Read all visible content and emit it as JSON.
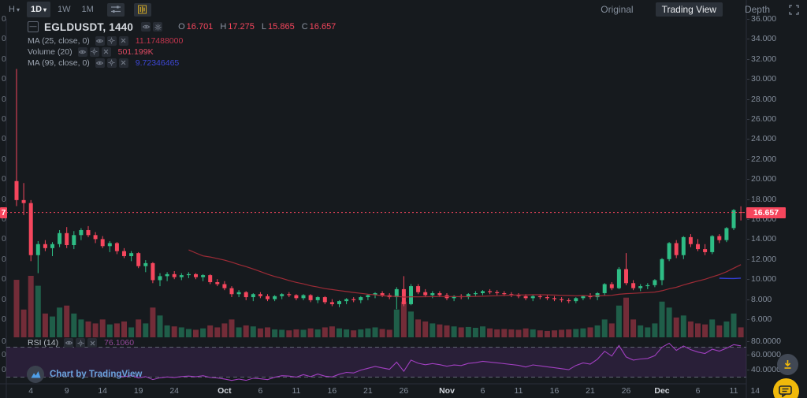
{
  "header": {
    "intervals": [
      {
        "label": "H",
        "caret": "▾",
        "active": false
      },
      {
        "label": "1D",
        "caret": "▾",
        "active": true
      },
      {
        "label": "1W",
        "caret": "",
        "active": false
      },
      {
        "label": "1M",
        "caret": "",
        "active": false
      }
    ],
    "view_tabs": [
      {
        "label": "Original",
        "active": false
      },
      {
        "label": "Trading View",
        "active": true
      },
      {
        "label": "Depth",
        "active": false
      }
    ]
  },
  "legend": {
    "collapse_glyph": "—",
    "symbol": "EGLDUSDT, 1440",
    "ohlc": [
      {
        "k": "O",
        "v": "16.701"
      },
      {
        "k": "H",
        "v": "17.275"
      },
      {
        "k": "L",
        "v": "15.865"
      },
      {
        "k": "C",
        "v": "16.657"
      }
    ],
    "indicators": [
      {
        "label": "MA (25, close, 0)",
        "value": "11.17488000",
        "color": "#c2354d"
      },
      {
        "label": "Volume (20)",
        "value": "501.199K",
        "color": "#e04a62"
      },
      {
        "label": "MA (99, close, 0)",
        "value": "9.72346465",
        "color": "#3d47d6"
      }
    ],
    "rsi": {
      "label": "RSI (14)",
      "value": "76.1060",
      "color": "#94489a"
    }
  },
  "attribution": {
    "text": "Chart by TradingView"
  },
  "axes": {
    "price_ticks": [
      {
        "value": 36,
        "label": "36.000"
      },
      {
        "value": 34,
        "label": "34.000"
      },
      {
        "value": 32,
        "label": "32.000"
      },
      {
        "value": 30,
        "label": "30.000"
      },
      {
        "value": 28,
        "label": "28.000"
      },
      {
        "value": 26,
        "label": "26.000"
      },
      {
        "value": 24,
        "label": "24.000"
      },
      {
        "value": 22,
        "label": "22.000"
      },
      {
        "value": 20,
        "label": "20.000"
      },
      {
        "value": 18,
        "label": "18.000"
      },
      {
        "value": 16,
        "label": "16.000"
      },
      {
        "value": 14,
        "label": "14.000"
      },
      {
        "value": 12,
        "label": "12.000"
      },
      {
        "value": 10,
        "label": "10.000"
      },
      {
        "value": 8,
        "label": "8.000"
      },
      {
        "value": 6,
        "label": "6.000"
      }
    ],
    "last_price_label": "16.657",
    "left_truncated_price": "7",
    "left_truncated_tick": "0",
    "rsi_ticks": [
      {
        "value": 80,
        "label": "80.0000"
      },
      {
        "value": 60,
        "label": "60.0000"
      },
      {
        "value": 40,
        "label": "40.0000"
      }
    ],
    "time_ticks": [
      {
        "i": 2,
        "label": "4",
        "month": false
      },
      {
        "i": 7,
        "label": "9",
        "month": false
      },
      {
        "i": 12,
        "label": "14",
        "month": false
      },
      {
        "i": 17,
        "label": "19",
        "month": false
      },
      {
        "i": 22,
        "label": "24",
        "month": false
      },
      {
        "i": 29,
        "label": "Oct",
        "month": true
      },
      {
        "i": 34,
        "label": "6",
        "month": false
      },
      {
        "i": 39,
        "label": "11",
        "month": false
      },
      {
        "i": 44,
        "label": "16",
        "month": false
      },
      {
        "i": 49,
        "label": "21",
        "month": false
      },
      {
        "i": 54,
        "label": "26",
        "month": false
      },
      {
        "i": 60,
        "label": "Nov",
        "month": true
      },
      {
        "i": 65,
        "label": "6",
        "month": false
      },
      {
        "i": 70,
        "label": "11",
        "month": false
      },
      {
        "i": 75,
        "label": "16",
        "month": false
      },
      {
        "i": 80,
        "label": "21",
        "month": false
      },
      {
        "i": 85,
        "label": "26",
        "month": false
      },
      {
        "i": 90,
        "label": "Dec",
        "month": true
      },
      {
        "i": 95,
        "label": "6",
        "month": false
      },
      {
        "i": 100,
        "label": "11",
        "month": false
      },
      {
        "i": 103,
        "label": "14",
        "month": false
      }
    ]
  },
  "colors": {
    "bg": "#161a1e",
    "up": "#2ebd85",
    "down": "#f6465d",
    "ma25_line": "#9e2b36",
    "ma99_line": "#343ed6",
    "rsi_line": "#a13fc0",
    "rsi_band_fill": "rgba(140,62,190,0.16)",
    "dashed_level": "#5f6472",
    "panel_line": "#2a2e39",
    "axis_text": "#848e9c",
    "accent": "#f0b90b",
    "price_label_bg": "#f6465d"
  },
  "chart_data": {
    "type": "candlestick",
    "symbol": "EGLDUSDT",
    "interval_minutes": 1440,
    "title": "EGLDUSDT, 1440",
    "legend_position": "top-left",
    "grid": false,
    "price_axis": {
      "min": 4.2,
      "max": 36,
      "tick_step": 2,
      "side": "right"
    },
    "rsi_axis": {
      "overbought": 70,
      "oversold": 30,
      "period": 14
    },
    "indicator_periods": {
      "ma_fast": 25,
      "ma_slow": 99,
      "volume_ma": 20,
      "rsi": 14
    },
    "last_price": 16.657,
    "ohlc_fields": [
      "open",
      "high",
      "low",
      "close",
      "volume_k"
    ],
    "candles": [
      [
        19.8,
        31.0,
        17.3,
        17.9,
        2900
      ],
      [
        17.9,
        19.6,
        16.4,
        17.6,
        1400
      ],
      [
        17.6,
        17.9,
        11.8,
        12.4,
        3100
      ],
      [
        12.4,
        13.8,
        10.6,
        13.5,
        2600
      ],
      [
        13.5,
        13.9,
        12.8,
        13.1,
        1200
      ],
      [
        13.1,
        13.7,
        12.3,
        13.5,
        1050
      ],
      [
        13.5,
        14.9,
        13.2,
        14.6,
        1500
      ],
      [
        14.6,
        15.2,
        13.1,
        13.4,
        1600
      ],
      [
        13.4,
        14.8,
        13.0,
        14.4,
        1200
      ],
      [
        14.4,
        15.1,
        13.9,
        14.9,
        900
      ],
      [
        14.9,
        15.3,
        14.2,
        14.4,
        800
      ],
      [
        14.4,
        14.7,
        13.6,
        14.0,
        700
      ],
      [
        14.0,
        14.3,
        13.1,
        13.3,
        900
      ],
      [
        13.3,
        13.8,
        12.7,
        13.6,
        650
      ],
      [
        13.6,
        13.7,
        12.5,
        12.8,
        700
      ],
      [
        12.8,
        13.1,
        12.1,
        12.3,
        800
      ],
      [
        12.3,
        12.8,
        11.8,
        12.6,
        500
      ],
      [
        12.6,
        12.7,
        11.1,
        11.3,
        900
      ],
      [
        11.3,
        11.9,
        10.7,
        11.6,
        700
      ],
      [
        11.6,
        11.7,
        9.6,
        9.9,
        1500
      ],
      [
        9.9,
        10.6,
        9.3,
        10.3,
        1100
      ],
      [
        10.3,
        10.7,
        9.8,
        10.5,
        600
      ],
      [
        10.5,
        10.8,
        10.0,
        10.2,
        550
      ],
      [
        10.2,
        10.6,
        9.9,
        10.4,
        500
      ],
      [
        10.4,
        10.7,
        10.1,
        10.5,
        420
      ],
      [
        10.5,
        10.6,
        10.0,
        10.2,
        380
      ],
      [
        10.2,
        10.5,
        9.8,
        10.4,
        450
      ],
      [
        10.4,
        10.5,
        9.5,
        9.7,
        600
      ],
      [
        9.7,
        10.0,
        9.3,
        9.5,
        500
      ],
      [
        9.5,
        9.8,
        8.9,
        9.1,
        700
      ],
      [
        9.1,
        9.3,
        8.2,
        8.5,
        900
      ],
      [
        8.5,
        8.9,
        8.2,
        8.7,
        500
      ],
      [
        8.7,
        8.8,
        7.9,
        8.2,
        600
      ],
      [
        8.2,
        8.6,
        7.8,
        8.5,
        550
      ],
      [
        8.5,
        8.7,
        8.1,
        8.3,
        450
      ],
      [
        8.3,
        8.5,
        7.8,
        8.0,
        500
      ],
      [
        8.0,
        8.4,
        7.8,
        8.3,
        400
      ],
      [
        8.3,
        8.6,
        8.0,
        8.5,
        380
      ],
      [
        8.5,
        8.7,
        8.2,
        8.4,
        350
      ],
      [
        8.4,
        8.5,
        7.9,
        8.1,
        400
      ],
      [
        8.1,
        8.5,
        7.9,
        8.4,
        380
      ],
      [
        8.4,
        8.5,
        7.7,
        7.9,
        450
      ],
      [
        7.9,
        8.3,
        7.6,
        8.2,
        400
      ],
      [
        8.2,
        8.3,
        7.5,
        7.7,
        500
      ],
      [
        7.7,
        8.0,
        7.3,
        7.5,
        550
      ],
      [
        7.5,
        7.9,
        7.2,
        7.8,
        450
      ],
      [
        7.8,
        8.1,
        7.5,
        8.0,
        400
      ],
      [
        8.0,
        8.2,
        7.7,
        7.9,
        350
      ],
      [
        7.9,
        8.3,
        7.6,
        8.2,
        400
      ],
      [
        8.2,
        8.5,
        7.9,
        8.4,
        450
      ],
      [
        8.4,
        8.7,
        8.1,
        8.6,
        500
      ],
      [
        8.6,
        8.8,
        8.2,
        8.4,
        420
      ],
      [
        8.4,
        8.6,
        8.0,
        8.2,
        380
      ],
      [
        8.2,
        9.2,
        7.0,
        9.0,
        1400
      ],
      [
        9.0,
        10.3,
        7.3,
        7.5,
        1800
      ],
      [
        7.5,
        9.5,
        7.4,
        9.3,
        1300
      ],
      [
        9.3,
        9.5,
        8.5,
        8.7,
        900
      ],
      [
        8.7,
        9.0,
        8.2,
        8.4,
        800
      ],
      [
        8.4,
        8.8,
        8.1,
        8.6,
        700
      ],
      [
        8.6,
        8.8,
        8.2,
        8.4,
        650
      ],
      [
        8.4,
        8.6,
        7.9,
        8.1,
        600
      ],
      [
        8.1,
        8.4,
        7.8,
        8.3,
        550
      ],
      [
        8.3,
        8.5,
        8.0,
        8.2,
        500
      ],
      [
        8.2,
        8.6,
        8.0,
        8.5,
        520
      ],
      [
        8.5,
        8.8,
        8.3,
        8.6,
        480
      ],
      [
        8.6,
        8.9,
        8.4,
        8.8,
        550
      ],
      [
        8.8,
        9.0,
        8.5,
        8.7,
        450
      ],
      [
        8.7,
        8.9,
        8.4,
        8.6,
        400
      ],
      [
        8.6,
        8.8,
        8.3,
        8.5,
        420
      ],
      [
        8.5,
        8.7,
        8.2,
        8.4,
        400
      ],
      [
        8.4,
        8.6,
        8.1,
        8.3,
        380
      ],
      [
        8.3,
        8.5,
        7.9,
        8.1,
        450
      ],
      [
        8.1,
        8.4,
        7.8,
        8.3,
        400
      ],
      [
        8.3,
        8.5,
        8.0,
        8.2,
        350
      ],
      [
        8.2,
        8.4,
        7.9,
        8.1,
        320
      ],
      [
        8.1,
        8.3,
        7.8,
        8.0,
        350
      ],
      [
        8.0,
        8.2,
        7.7,
        7.9,
        380
      ],
      [
        7.9,
        8.1,
        7.6,
        7.8,
        400
      ],
      [
        7.8,
        8.2,
        7.6,
        8.1,
        420
      ],
      [
        8.1,
        8.4,
        7.9,
        8.3,
        450
      ],
      [
        8.3,
        8.6,
        8.0,
        8.2,
        500
      ],
      [
        8.2,
        8.7,
        7.9,
        8.6,
        600
      ],
      [
        8.6,
        9.6,
        8.4,
        9.5,
        900
      ],
      [
        9.5,
        9.7,
        8.9,
        9.1,
        700
      ],
      [
        9.1,
        11.2,
        9.0,
        11.0,
        1600
      ],
      [
        11.0,
        12.6,
        9.4,
        9.6,
        2000
      ],
      [
        9.6,
        9.9,
        8.9,
        9.1,
        900
      ],
      [
        9.1,
        9.5,
        8.8,
        9.3,
        600
      ],
      [
        9.3,
        9.6,
        9.0,
        9.4,
        500
      ],
      [
        9.4,
        10.0,
        9.2,
        9.9,
        700
      ],
      [
        9.9,
        12.1,
        9.4,
        12.0,
        1800
      ],
      [
        12.0,
        13.7,
        11.8,
        13.6,
        1500
      ],
      [
        13.6,
        13.9,
        12.1,
        12.4,
        1000
      ],
      [
        12.4,
        14.3,
        12.0,
        14.2,
        1100
      ],
      [
        14.2,
        14.5,
        13.2,
        13.5,
        800
      ],
      [
        13.5,
        14.0,
        12.8,
        13.0,
        700
      ],
      [
        13.0,
        13.5,
        12.4,
        12.7,
        650
      ],
      [
        12.7,
        14.4,
        12.5,
        14.3,
        900
      ],
      [
        14.3,
        14.5,
        13.6,
        13.9,
        600
      ],
      [
        13.9,
        15.2,
        13.7,
        15.1,
        800
      ],
      [
        15.1,
        17.0,
        14.9,
        16.9,
        1200
      ],
      [
        16.701,
        17.275,
        15.865,
        16.657,
        501
      ]
    ]
  }
}
